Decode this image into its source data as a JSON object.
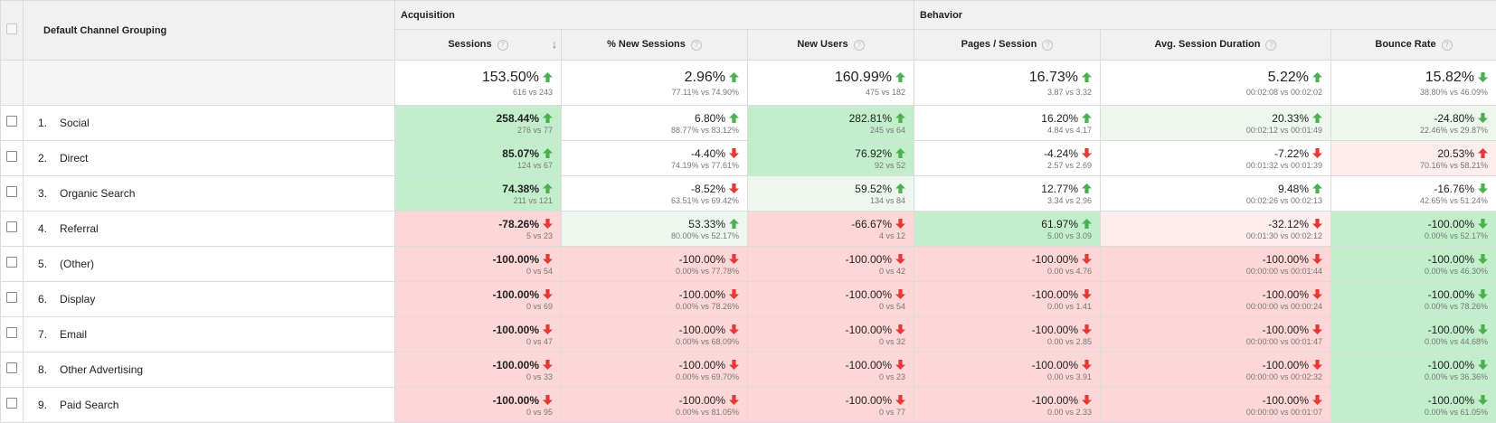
{
  "colors": {
    "up_arrow": "#4caf50",
    "down_arrow": "#e53935",
    "green_strong": "#c2eecb",
    "green_light": "#edf7ee",
    "red_strong": "#fdd7d7",
    "red_light": "#fdeded"
  },
  "header": {
    "dimension_label": "Default Channel Grouping",
    "groups": {
      "acquisition": "Acquisition",
      "behavior": "Behavior"
    },
    "help_symbol": "?",
    "sort_symbol": "↓",
    "metrics": [
      "Sessions",
      "% New Sessions",
      "New Users",
      "Pages / Session",
      "Avg. Session Duration",
      "Bounce Rate"
    ]
  },
  "totals": [
    {
      "value": "153.50%",
      "sub": "616 vs 243",
      "arrow": "up",
      "color": "green"
    },
    {
      "value": "2.96%",
      "sub": "77.11% vs 74.90%",
      "arrow": "up",
      "color": "green"
    },
    {
      "value": "160.99%",
      "sub": "475 vs 182",
      "arrow": "up",
      "color": "green"
    },
    {
      "value": "16.73%",
      "sub": "3.87 vs 3.32",
      "arrow": "up",
      "color": "green"
    },
    {
      "value": "5.22%",
      "sub": "00:02:08 vs 00:02:02",
      "arrow": "up",
      "color": "green"
    },
    {
      "value": "15.82%",
      "sub": "38.80% vs 46.09%",
      "arrow": "down",
      "color": "green"
    }
  ],
  "rows": [
    {
      "index": "1.",
      "name": "Social",
      "cells": [
        {
          "value": "258.44%",
          "sub": "276 vs 77",
          "arrow": "up",
          "color": "green",
          "bg": "g-strong",
          "bold": true
        },
        {
          "value": "6.80%",
          "sub": "88.77% vs 83.12%",
          "arrow": "up",
          "color": "green",
          "bg": "neutral"
        },
        {
          "value": "282.81%",
          "sub": "245 vs 64",
          "arrow": "up",
          "color": "green",
          "bg": "g-strong"
        },
        {
          "value": "16.20%",
          "sub": "4.84 vs 4.17",
          "arrow": "up",
          "color": "green",
          "bg": "neutral"
        },
        {
          "value": "20.33%",
          "sub": "00:02:12 vs 00:01:49",
          "arrow": "up",
          "color": "green",
          "bg": "g-light"
        },
        {
          "value": "-24.80%",
          "sub": "22.46% vs 29.87%",
          "arrow": "down",
          "color": "green",
          "bg": "g-light"
        }
      ]
    },
    {
      "index": "2.",
      "name": "Direct",
      "cells": [
        {
          "value": "85.07%",
          "sub": "124 vs 67",
          "arrow": "up",
          "color": "green",
          "bg": "g-strong",
          "bold": true
        },
        {
          "value": "-4.40%",
          "sub": "74.19% vs 77.61%",
          "arrow": "down",
          "color": "red",
          "bg": "neutral"
        },
        {
          "value": "76.92%",
          "sub": "92 vs 52",
          "arrow": "up",
          "color": "green",
          "bg": "g-strong"
        },
        {
          "value": "-4.24%",
          "sub": "2.57 vs 2.69",
          "arrow": "down",
          "color": "red",
          "bg": "neutral"
        },
        {
          "value": "-7.22%",
          "sub": "00:01:32 vs 00:01:39",
          "arrow": "down",
          "color": "red",
          "bg": "neutral"
        },
        {
          "value": "20.53%",
          "sub": "70.16% vs 58.21%",
          "arrow": "up",
          "color": "red",
          "bg": "r-light"
        }
      ]
    },
    {
      "index": "3.",
      "name": "Organic Search",
      "cells": [
        {
          "value": "74.38%",
          "sub": "211 vs 121",
          "arrow": "up",
          "color": "green",
          "bg": "g-strong",
          "bold": true
        },
        {
          "value": "-8.52%",
          "sub": "63.51% vs 69.42%",
          "arrow": "down",
          "color": "red",
          "bg": "neutral"
        },
        {
          "value": "59.52%",
          "sub": "134 vs 84",
          "arrow": "up",
          "color": "green",
          "bg": "g-light"
        },
        {
          "value": "12.77%",
          "sub": "3.34 vs 2.96",
          "arrow": "up",
          "color": "green",
          "bg": "neutral"
        },
        {
          "value": "9.48%",
          "sub": "00:02:26 vs 00:02:13",
          "arrow": "up",
          "color": "green",
          "bg": "neutral"
        },
        {
          "value": "-16.76%",
          "sub": "42.65% vs 51.24%",
          "arrow": "down",
          "color": "green",
          "bg": "neutral"
        }
      ]
    },
    {
      "index": "4.",
      "name": "Referral",
      "cells": [
        {
          "value": "-78.26%",
          "sub": "5 vs 23",
          "arrow": "down",
          "color": "red",
          "bg": "r-strong",
          "bold": true
        },
        {
          "value": "53.33%",
          "sub": "80.00% vs 52.17%",
          "arrow": "up",
          "color": "green",
          "bg": "g-light"
        },
        {
          "value": "-66.67%",
          "sub": "4 vs 12",
          "arrow": "down",
          "color": "red",
          "bg": "r-strong"
        },
        {
          "value": "61.97%",
          "sub": "5.00 vs 3.09",
          "arrow": "up",
          "color": "green",
          "bg": "g-strong"
        },
        {
          "value": "-32.12%",
          "sub": "00:01:30 vs 00:02:12",
          "arrow": "down",
          "color": "red",
          "bg": "r-light"
        },
        {
          "value": "-100.00%",
          "sub": "0.00% vs 52.17%",
          "arrow": "down",
          "color": "green",
          "bg": "g-strong"
        }
      ]
    },
    {
      "index": "5.",
      "name": "(Other)",
      "cells": [
        {
          "value": "-100.00%",
          "sub": "0 vs 54",
          "arrow": "down",
          "color": "red",
          "bg": "r-strong",
          "bold": true
        },
        {
          "value": "-100.00%",
          "sub": "0.00% vs 77.78%",
          "arrow": "down",
          "color": "red",
          "bg": "r-strong"
        },
        {
          "value": "-100.00%",
          "sub": "0 vs 42",
          "arrow": "down",
          "color": "red",
          "bg": "r-strong"
        },
        {
          "value": "-100.00%",
          "sub": "0.00 vs 4.76",
          "arrow": "down",
          "color": "red",
          "bg": "r-strong"
        },
        {
          "value": "-100.00%",
          "sub": "00:00:00 vs 00:01:44",
          "arrow": "down",
          "color": "red",
          "bg": "r-strong"
        },
        {
          "value": "-100.00%",
          "sub": "0.00% vs 46.30%",
          "arrow": "down",
          "color": "green",
          "bg": "g-strong"
        }
      ]
    },
    {
      "index": "6.",
      "name": "Display",
      "cells": [
        {
          "value": "-100.00%",
          "sub": "0 vs 69",
          "arrow": "down",
          "color": "red",
          "bg": "r-strong",
          "bold": true
        },
        {
          "value": "-100.00%",
          "sub": "0.00% vs 78.26%",
          "arrow": "down",
          "color": "red",
          "bg": "r-strong"
        },
        {
          "value": "-100.00%",
          "sub": "0 vs 54",
          "arrow": "down",
          "color": "red",
          "bg": "r-strong"
        },
        {
          "value": "-100.00%",
          "sub": "0.00 vs 1.41",
          "arrow": "down",
          "color": "red",
          "bg": "r-strong"
        },
        {
          "value": "-100.00%",
          "sub": "00:00:00 vs 00:00:24",
          "arrow": "down",
          "color": "red",
          "bg": "r-strong"
        },
        {
          "value": "-100.00%",
          "sub": "0.00% vs 78.26%",
          "arrow": "down",
          "color": "green",
          "bg": "g-strong"
        }
      ]
    },
    {
      "index": "7.",
      "name": "Email",
      "cells": [
        {
          "value": "-100.00%",
          "sub": "0 vs 47",
          "arrow": "down",
          "color": "red",
          "bg": "r-strong",
          "bold": true
        },
        {
          "value": "-100.00%",
          "sub": "0.00% vs 68.09%",
          "arrow": "down",
          "color": "red",
          "bg": "r-strong"
        },
        {
          "value": "-100.00%",
          "sub": "0 vs 32",
          "arrow": "down",
          "color": "red",
          "bg": "r-strong"
        },
        {
          "value": "-100.00%",
          "sub": "0.00 vs 2.85",
          "arrow": "down",
          "color": "red",
          "bg": "r-strong"
        },
        {
          "value": "-100.00%",
          "sub": "00:00:00 vs 00:01:47",
          "arrow": "down",
          "color": "red",
          "bg": "r-strong"
        },
        {
          "value": "-100.00%",
          "sub": "0.00% vs 44.68%",
          "arrow": "down",
          "color": "green",
          "bg": "g-strong"
        }
      ]
    },
    {
      "index": "8.",
      "name": "Other Advertising",
      "cells": [
        {
          "value": "-100.00%",
          "sub": "0 vs 33",
          "arrow": "down",
          "color": "red",
          "bg": "r-strong",
          "bold": true
        },
        {
          "value": "-100.00%",
          "sub": "0.00% vs 69.70%",
          "arrow": "down",
          "color": "red",
          "bg": "r-strong"
        },
        {
          "value": "-100.00%",
          "sub": "0 vs 23",
          "arrow": "down",
          "color": "red",
          "bg": "r-strong"
        },
        {
          "value": "-100.00%",
          "sub": "0.00 vs 3.91",
          "arrow": "down",
          "color": "red",
          "bg": "r-strong"
        },
        {
          "value": "-100.00%",
          "sub": "00:00:00 vs 00:02:32",
          "arrow": "down",
          "color": "red",
          "bg": "r-strong"
        },
        {
          "value": "-100.00%",
          "sub": "0.00% vs 36.36%",
          "arrow": "down",
          "color": "green",
          "bg": "g-strong"
        }
      ]
    },
    {
      "index": "9.",
      "name": "Paid Search",
      "cells": [
        {
          "value": "-100.00%",
          "sub": "0 vs 95",
          "arrow": "down",
          "color": "red",
          "bg": "r-strong",
          "bold": true
        },
        {
          "value": "-100.00%",
          "sub": "0.00% vs 81.05%",
          "arrow": "down",
          "color": "red",
          "bg": "r-strong"
        },
        {
          "value": "-100.00%",
          "sub": "0 vs 77",
          "arrow": "down",
          "color": "red",
          "bg": "r-strong"
        },
        {
          "value": "-100.00%",
          "sub": "0.00 vs 2.33",
          "arrow": "down",
          "color": "red",
          "bg": "r-strong"
        },
        {
          "value": "-100.00%",
          "sub": "00:00:00 vs 00:01:07",
          "arrow": "down",
          "color": "red",
          "bg": "r-strong"
        },
        {
          "value": "-100.00%",
          "sub": "0.00% vs 61.05%",
          "arrow": "down",
          "color": "green",
          "bg": "g-strong"
        }
      ]
    }
  ]
}
